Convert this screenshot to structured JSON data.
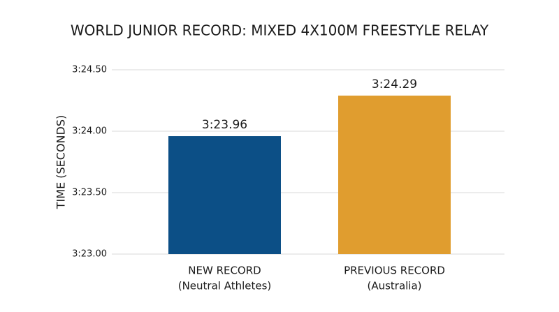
{
  "chart_data": {
    "type": "bar",
    "title": "WORLD JUNIOR RECORD: MIXED 4X100M FREESTYLE RELAY",
    "y_label": "TIME (SECONDS)",
    "categories": [
      [
        "NEW RECORD",
        "(Neutral Athletes)"
      ],
      [
        "PREVIOUS RECORD",
        "(Australia)"
      ]
    ],
    "values": [
      203.96,
      204.29
    ],
    "value_labels": [
      "3:23.96",
      "3:24.29"
    ],
    "colors": [
      "#0c4f86",
      "#e09d2f"
    ],
    "ylim": [
      203,
      204.5
    ],
    "yticks": [
      {
        "value": 203,
        "label": "3:23.00"
      },
      {
        "value": 203.5,
        "label": "3:23.50"
      },
      {
        "value": 204,
        "label": "3:24.00"
      },
      {
        "value": 204.5,
        "label": "3:24.50"
      }
    ],
    "grid": true
  }
}
